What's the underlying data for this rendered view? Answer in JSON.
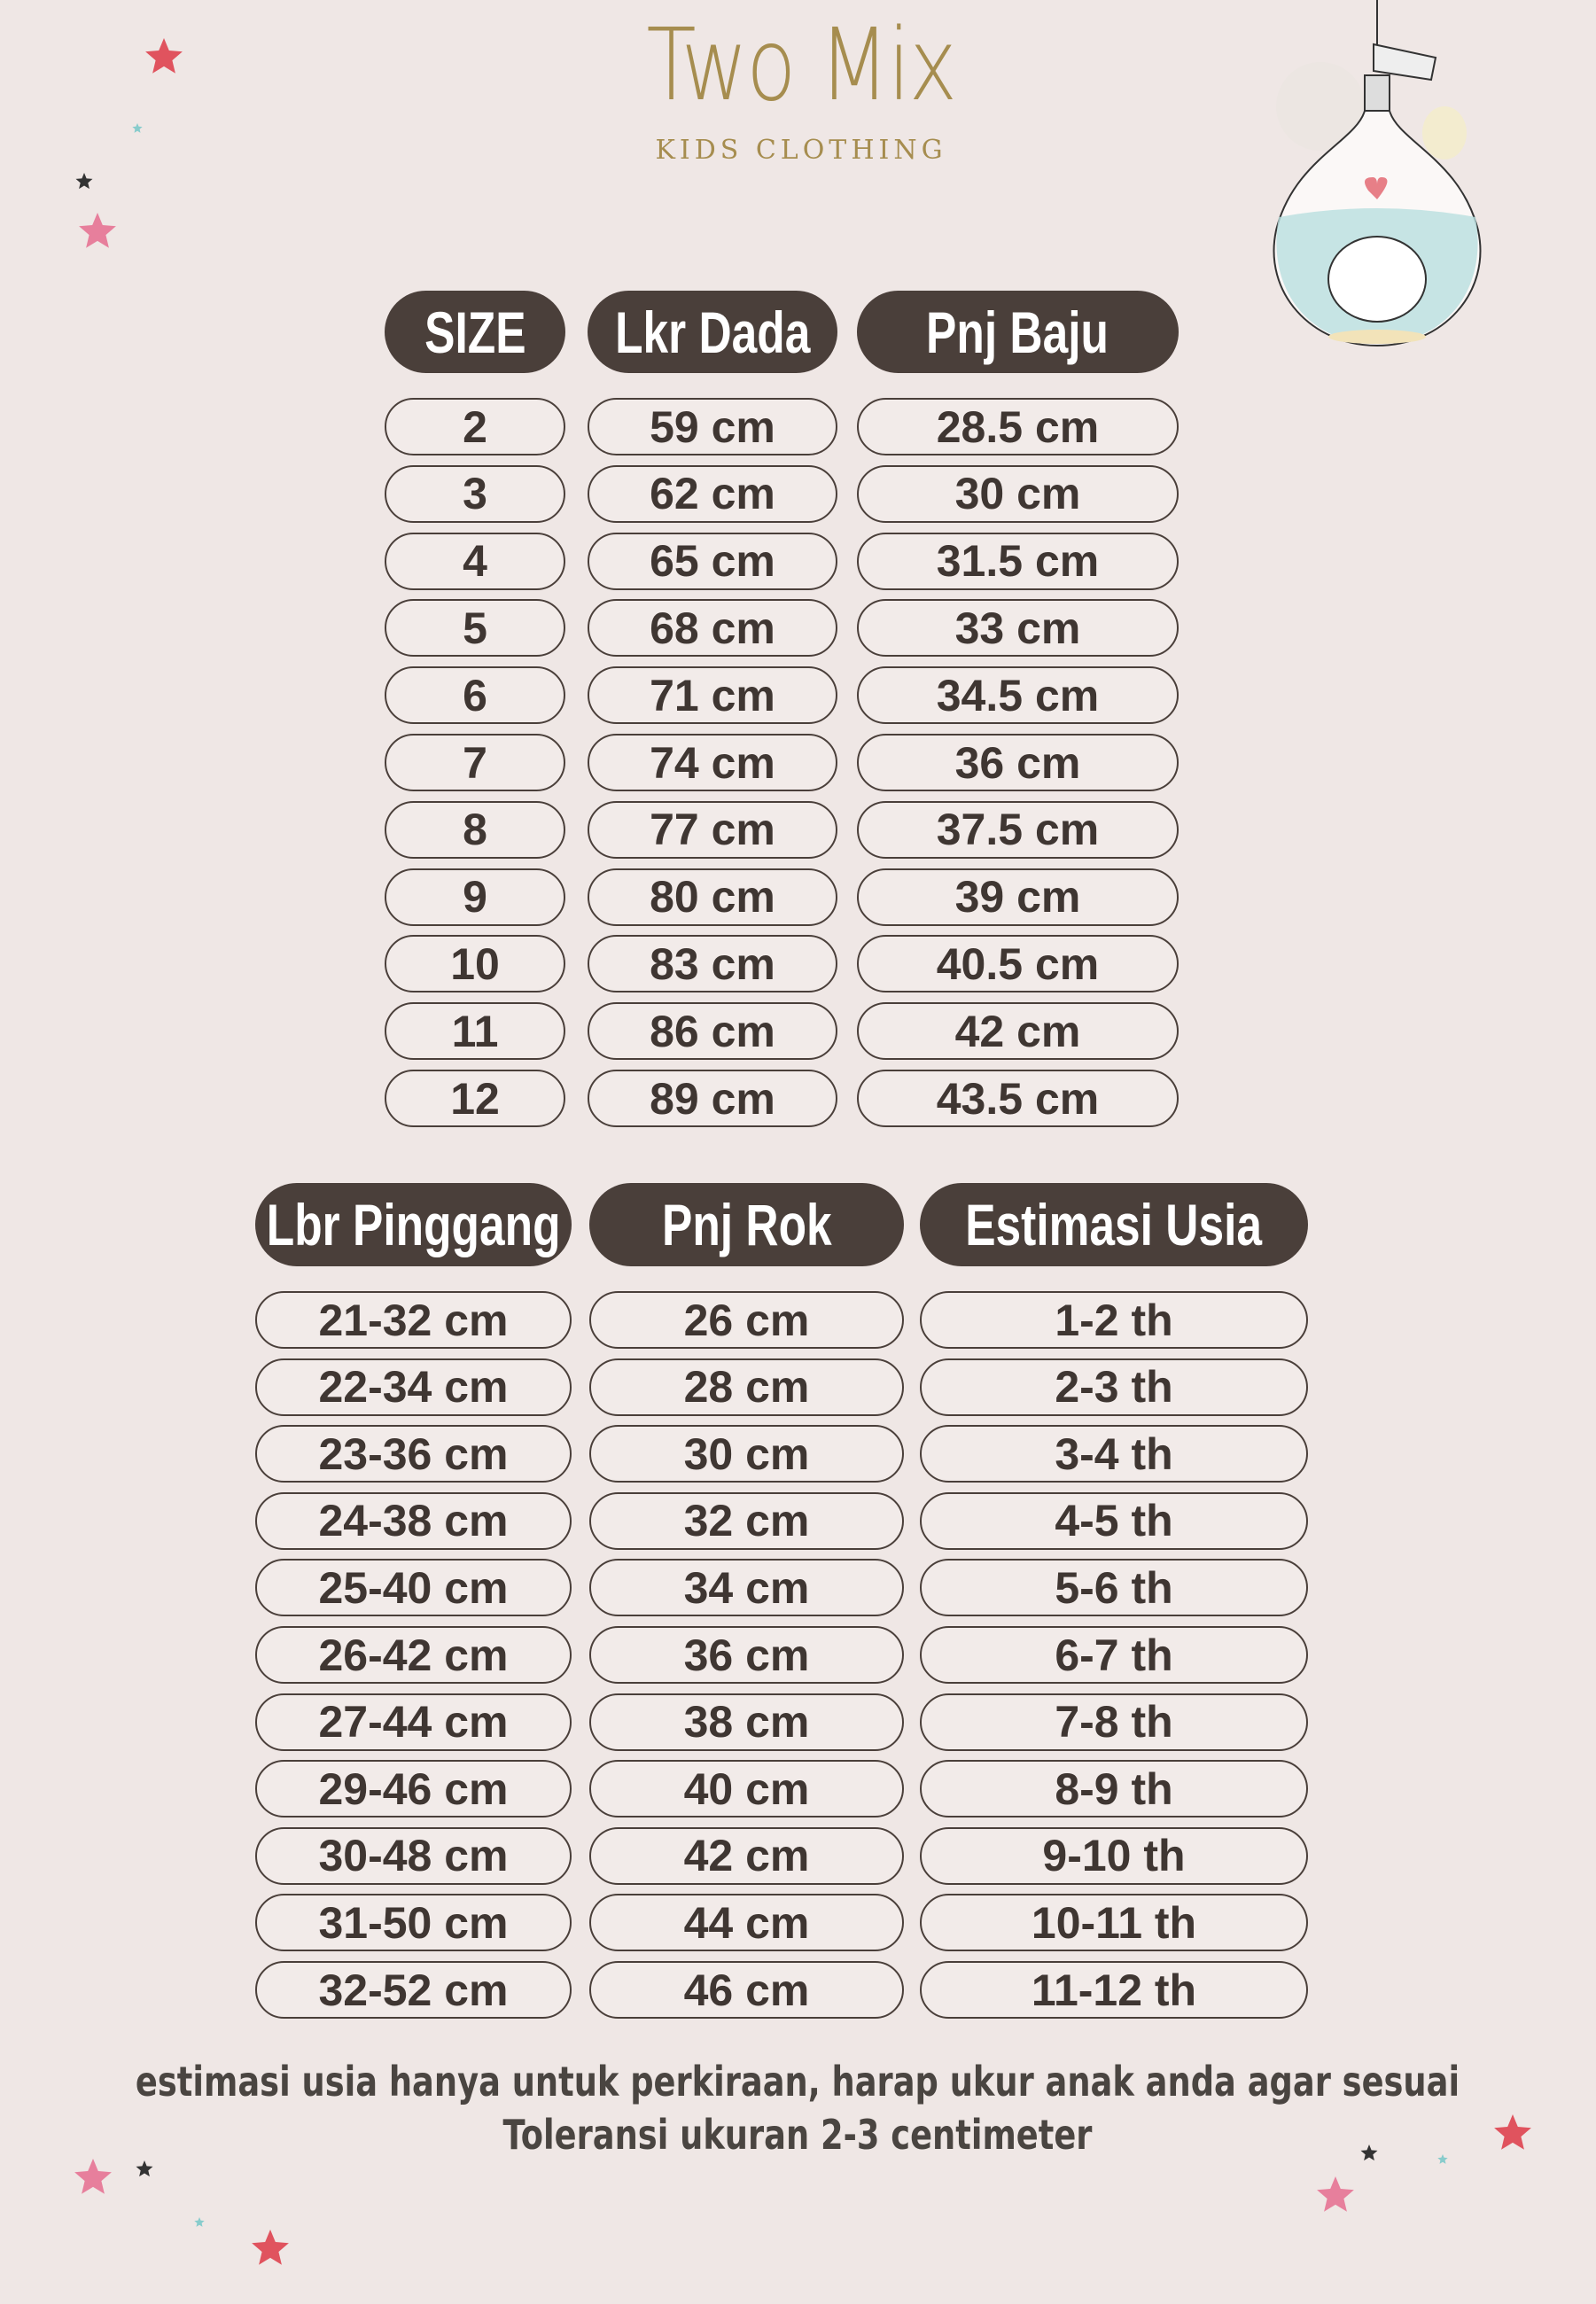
{
  "brand": {
    "name": "Two Mix",
    "tagline": "KIDS CLOTHING"
  },
  "table1": {
    "headers": [
      "SIZE",
      "Lkr Dada",
      "Pnj Baju"
    ],
    "rows": [
      [
        "2",
        "59 cm",
        "28.5 cm"
      ],
      [
        "3",
        "62 cm",
        "30 cm"
      ],
      [
        "4",
        "65 cm",
        "31.5 cm"
      ],
      [
        "5",
        "68 cm",
        "33 cm"
      ],
      [
        "6",
        "71 cm",
        "34.5 cm"
      ],
      [
        "7",
        "74 cm",
        "36 cm"
      ],
      [
        "8",
        "77 cm",
        "37.5 cm"
      ],
      [
        "9",
        "80 cm",
        "39 cm"
      ],
      [
        "10",
        "83 cm",
        "40.5 cm"
      ],
      [
        "11",
        "86 cm",
        "42 cm"
      ],
      [
        "12",
        "89 cm",
        "43.5 cm"
      ]
    ]
  },
  "table2": {
    "headers": [
      "Lbr Pinggang",
      "Pnj Rok",
      "Estimasi Usia"
    ],
    "rows": [
      [
        "21-32 cm",
        "26 cm",
        "1-2 th"
      ],
      [
        "22-34 cm",
        "28 cm",
        "2-3 th"
      ],
      [
        "23-36 cm",
        "30 cm",
        "3-4 th"
      ],
      [
        "24-38 cm",
        "32 cm",
        "4-5 th"
      ],
      [
        "25-40 cm",
        "34 cm",
        "5-6 th"
      ],
      [
        "26-42 cm",
        "36 cm",
        "6-7 th"
      ],
      [
        "27-44 cm",
        "38 cm",
        "7-8 th"
      ],
      [
        "29-46 cm",
        "40 cm",
        "8-9 th"
      ],
      [
        "30-48 cm",
        "42 cm",
        "9-10 th"
      ],
      [
        "31-50 cm",
        "44 cm",
        "10-11 th"
      ],
      [
        "32-52 cm",
        "46 cm",
        "11-12 th"
      ]
    ]
  },
  "notes": {
    "line1": "estimasi usia hanya untuk perkiraan, harap ukur anak anda agar sesuai",
    "line2": "Toleransi ukuran 2-3 centimeter"
  },
  "colors": {
    "background": "#efe7e5",
    "header": "#4a3f3a",
    "brand": "#a68d4f",
    "star_red": "#e0535e",
    "star_pink": "#e77f9c"
  }
}
